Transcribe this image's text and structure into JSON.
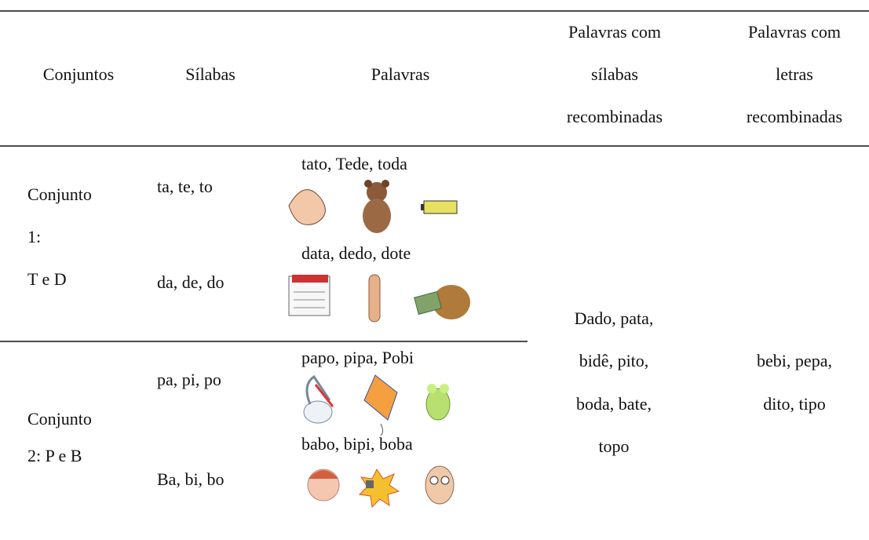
{
  "table": {
    "header": [
      [
        "Conjuntos"
      ],
      [
        "Sílabas"
      ],
      [
        "Palavras"
      ],
      [
        "Palavras com",
        "sílabas",
        "recombinadas"
      ],
      [
        "Palavras com",
        "letras",
        "recombinadas"
      ]
    ],
    "rows": [
      {
        "set": [
          "Conjunto",
          "1:",
          "T e D"
        ],
        "syllables": [
          "ta, te, to",
          "da, de, do"
        ],
        "words": [
          "tato, Tede, toda",
          "data, dedo, dote"
        ]
      },
      {
        "set": [
          "Conjunto",
          "2: P e B"
        ],
        "syllables": [
          "pa, pi, po",
          "Ba, bi, bo"
        ],
        "words": [
          "papo, pipa, Pobi",
          "babo, bipi, boba"
        ]
      }
    ],
    "recombined_syllables": [
      "Dado, pata,",
      "bidê, pito,",
      "boda, bate,",
      "topo"
    ],
    "recombined_letters": [
      "bebi, pepa,",
      "dito, tipo"
    ]
  }
}
